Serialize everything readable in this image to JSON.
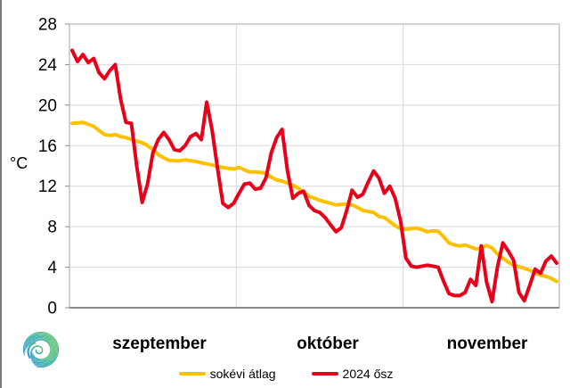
{
  "chart_data": {
    "type": "line",
    "title": "",
    "ylabel": "°C",
    "ylim": [
      0,
      28
    ],
    "yticks": [
      0,
      4,
      8,
      12,
      16,
      20,
      24,
      28
    ],
    "grid": "horizontal gridlines every 4°C plus vertical month separators",
    "legend_position": "bottom-center",
    "x_axis": {
      "months": [
        "szeptember",
        "október",
        "november"
      ],
      "days_per_month": [
        30,
        31,
        30
      ]
    },
    "series": [
      {
        "name": "sokévi átlag",
        "color": "#FFC000",
        "line_width": 4,
        "values": [
          18.2,
          18.25,
          18.3,
          18.1,
          17.9,
          17.5,
          17.1,
          17.0,
          17.1,
          16.9,
          16.8,
          16.6,
          16.45,
          16.3,
          16.0,
          15.6,
          15.1,
          14.8,
          14.55,
          14.5,
          14.5,
          14.6,
          14.5,
          14.45,
          14.3,
          14.2,
          14.1,
          13.95,
          13.85,
          13.75,
          13.7,
          13.85,
          13.6,
          13.4,
          13.4,
          13.35,
          13.3,
          12.9,
          12.6,
          12.5,
          12.3,
          12.1,
          11.8,
          11.4,
          11.0,
          10.8,
          10.6,
          10.45,
          10.3,
          10.15,
          10.2,
          10.25,
          10.15,
          9.9,
          9.6,
          9.5,
          9.4,
          9.0,
          8.9,
          8.5,
          8.1,
          7.8,
          7.75,
          7.8,
          7.85,
          7.7,
          7.5,
          7.6,
          7.55,
          7.0,
          6.4,
          6.2,
          6.1,
          6.2,
          6.0,
          5.8,
          5.9,
          6.15,
          5.9,
          5.3,
          4.9,
          4.5,
          4.2,
          4.05,
          3.9,
          3.7,
          3.45,
          3.2,
          3.1,
          2.9,
          2.6
        ]
      },
      {
        "name": "2024 ősz",
        "color": "#E8001A",
        "line_width": 4,
        "values": [
          25.4,
          24.3,
          25.0,
          24.2,
          24.6,
          23.2,
          22.6,
          23.4,
          24.0,
          20.6,
          18.3,
          18.2,
          14.0,
          10.4,
          12.2,
          15.3,
          16.6,
          17.3,
          16.6,
          15.6,
          15.5,
          16.0,
          16.9,
          17.2,
          16.6,
          20.3,
          17.5,
          13.8,
          10.3,
          9.9,
          10.3,
          11.3,
          12.2,
          12.3,
          11.7,
          11.8,
          12.8,
          15.3,
          16.8,
          17.6,
          13.5,
          10.8,
          11.3,
          11.5,
          10.1,
          9.6,
          9.4,
          8.9,
          8.2,
          7.5,
          7.9,
          9.6,
          11.6,
          10.9,
          11.2,
          12.4,
          13.5,
          12.8,
          11.3,
          12.0,
          10.8,
          8.6,
          4.9,
          4.1,
          4.0,
          4.1,
          4.2,
          4.1,
          4.0,
          2.6,
          1.4,
          1.2,
          1.2,
          1.5,
          2.8,
          2.2,
          6.1,
          2.5,
          0.6,
          4.0,
          6.4,
          5.6,
          4.7,
          1.5,
          0.7,
          2.2,
          3.8,
          3.4,
          4.6,
          5.1,
          4.4
        ]
      }
    ]
  },
  "colors": {
    "gridline": "#D9D9D9",
    "plot_border": "#BFBFBF",
    "axis_line": "#8C8C8C",
    "text": "#000000"
  },
  "logo": {
    "description": "meteorological spiral logo",
    "colors": [
      "#5ABE72",
      "#2FAF9F",
      "#3F9BD1"
    ]
  }
}
